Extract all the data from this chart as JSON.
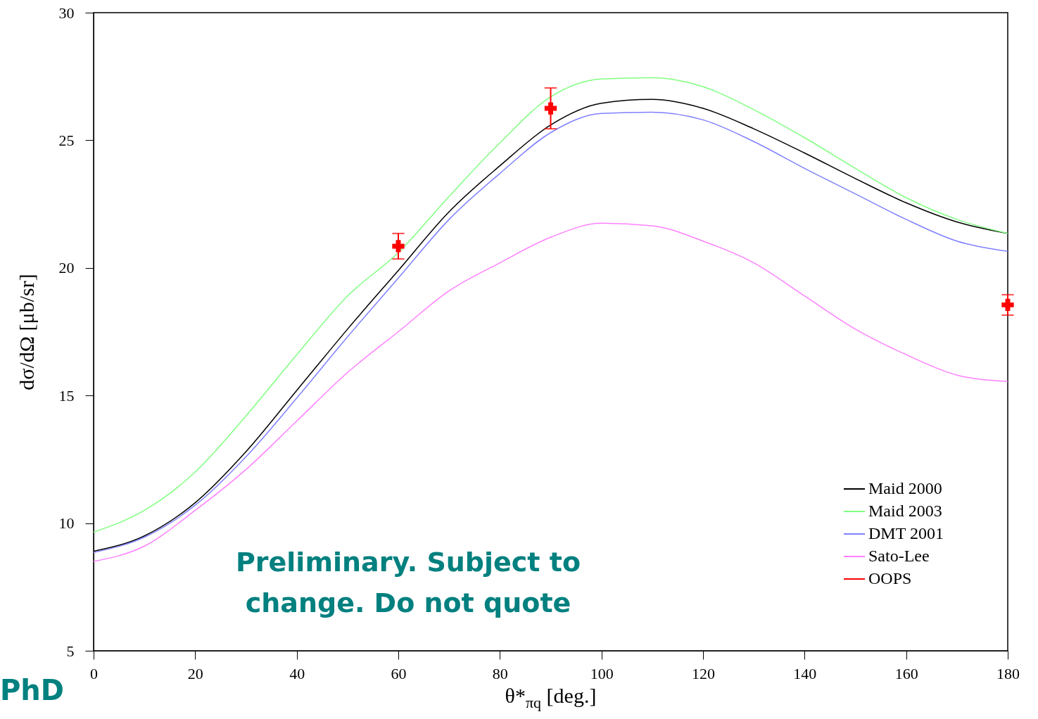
{
  "chart_data": {
    "type": "line",
    "xlabel": "θ*$_{πq}$ [deg.]",
    "ylabel": "dσ/dΩ [μb/sr]",
    "x": [
      0,
      10,
      20,
      30,
      40,
      50,
      60,
      70,
      80,
      90,
      100,
      110,
      120,
      130,
      140,
      150,
      160,
      170,
      180
    ],
    "xlim": [
      0,
      180
    ],
    "xticks": [
      0,
      20,
      40,
      60,
      80,
      100,
      120,
      140,
      160,
      180
    ],
    "ylim": [
      5,
      30
    ],
    "yticks": [
      5,
      10,
      15,
      20,
      25,
      30
    ],
    "grid": false,
    "legend": "bottom right",
    "marker": "none",
    "line_style": "solid",
    "series": [
      {
        "name": "Maid 2000",
        "color": "#000000",
        "values": [
          8.9,
          9.5,
          10.8,
          12.8,
          15.2,
          17.6,
          19.9,
          22.2,
          24.0,
          25.6,
          26.45,
          26.6,
          26.25,
          25.45,
          24.5,
          23.5,
          22.55,
          21.8,
          21.35
        ]
      },
      {
        "name": "Maid 2003",
        "color": "#80ff80",
        "values": [
          9.65,
          10.5,
          12.0,
          14.2,
          16.6,
          18.9,
          20.6,
          22.8,
          24.9,
          26.7,
          27.4,
          27.45,
          27.1,
          26.2,
          25.1,
          23.9,
          22.75,
          21.9,
          21.35
        ]
      },
      {
        "name": "DMT 2001",
        "color": "#8080ff",
        "values": [
          8.85,
          9.45,
          10.7,
          12.6,
          14.9,
          17.3,
          19.6,
          21.9,
          23.7,
          25.3,
          26.05,
          26.1,
          25.8,
          24.95,
          23.9,
          22.9,
          21.9,
          21.05,
          20.65
        ]
      },
      {
        "name": "Sato-Lee",
        "color": "#ff80ff",
        "values": [
          8.5,
          9.1,
          10.5,
          12.1,
          14.0,
          15.9,
          17.5,
          19.1,
          20.2,
          21.2,
          21.75,
          21.65,
          21.05,
          20.2,
          18.9,
          17.6,
          16.6,
          15.8,
          15.55
        ]
      },
      {
        "name": "OOPS",
        "type": "scatter",
        "marker": "cross",
        "color": "#ff0000",
        "x": [
          60,
          90,
          180
        ],
        "values": [
          20.85,
          26.25,
          18.55
        ],
        "errors": [
          0.5,
          0.8,
          0.4
        ]
      }
    ],
    "annotations": [
      "Preliminary. Subject to change. Do not quote",
      "PhD"
    ]
  }
}
